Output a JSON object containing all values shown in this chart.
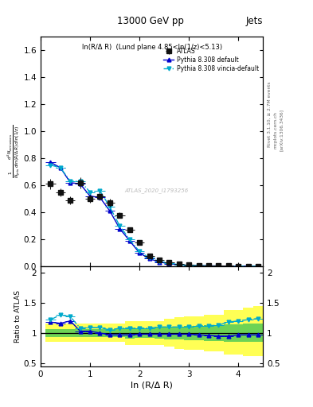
{
  "title_top": "13000 GeV pp",
  "title_right": "Jets",
  "panel_title": "ln(R/Δ R)  (Lund plane 4.85<ln(1/z)<5.13)",
  "ylabel_main": "$\\frac{1}{N_{jets}}\\frac{d^2 N_{emissions}}{d\\ln(R/\\Delta\\,R)\\,d\\ln(1/z)}$",
  "ylabel_ratio": "Ratio to ATLAS",
  "xlabel": "ln (R/Δ R)",
  "right_label_top": "Rivet 3.1.10, ≥ 2.7M events",
  "right_label_mid": "mcplots.cern.ch  [arXiv:1306.3436]",
  "watermark": "ATLAS_2020_I1793256",
  "xlim": [
    0,
    4.5
  ],
  "ylim_main": [
    0,
    1.7
  ],
  "ylim_ratio": [
    0.45,
    2.1
  ],
  "atlas_x": [
    0.2,
    0.4,
    0.6,
    0.8,
    1.0,
    1.2,
    1.4,
    1.6,
    1.8,
    2.0,
    2.2,
    2.4,
    2.6,
    2.8,
    3.0,
    3.2,
    3.4,
    3.6,
    3.8,
    4.0,
    4.2,
    4.4
  ],
  "atlas_y": [
    0.61,
    0.55,
    0.49,
    0.62,
    0.5,
    0.52,
    0.47,
    0.38,
    0.27,
    0.18,
    0.08,
    0.05,
    0.03,
    0.02,
    0.01,
    0.008,
    0.006,
    0.005,
    0.004,
    0.003,
    0.002,
    0.001
  ],
  "atlas_xerr": 0.1,
  "atlas_yerr": [
    0.04,
    0.03,
    0.03,
    0.04,
    0.03,
    0.03,
    0.03,
    0.02,
    0.015,
    0.01,
    0.006,
    0.004,
    0.003,
    0.002,
    0.001,
    0.001,
    0.001,
    0.001,
    0.001,
    0.001,
    0.001,
    0.001
  ],
  "p8def_x": [
    0.2,
    0.4,
    0.6,
    0.8,
    1.0,
    1.2,
    1.4,
    1.6,
    1.8,
    2.0,
    2.2,
    2.4,
    2.6,
    2.8,
    3.0,
    3.2,
    3.4,
    3.6,
    3.8,
    4.0,
    4.2,
    4.4
  ],
  "p8def_y": [
    0.77,
    0.73,
    0.62,
    0.61,
    0.52,
    0.51,
    0.41,
    0.28,
    0.19,
    0.1,
    0.057,
    0.033,
    0.02,
    0.012,
    0.007,
    0.005,
    0.004,
    0.003,
    0.002,
    0.002,
    0.0015,
    0.001
  ],
  "p8vincia_x": [
    0.2,
    0.4,
    0.6,
    0.8,
    1.0,
    1.2,
    1.4,
    1.6,
    1.8,
    2.0,
    2.2,
    2.4,
    2.6,
    2.8,
    3.0,
    3.2,
    3.4,
    3.6,
    3.8,
    4.0,
    4.2,
    4.4
  ],
  "p8vincia_y": [
    0.75,
    0.73,
    0.63,
    0.63,
    0.55,
    0.56,
    0.44,
    0.3,
    0.2,
    0.11,
    0.063,
    0.038,
    0.023,
    0.014,
    0.008,
    0.006,
    0.004,
    0.003,
    0.002,
    0.002,
    0.0018,
    0.0012
  ],
  "ratio_p8def_y": [
    1.18,
    1.16,
    1.2,
    1.03,
    1.03,
    1.0,
    0.97,
    0.97,
    0.97,
    0.98,
    0.98,
    0.98,
    0.98,
    0.98,
    0.98,
    0.97,
    0.96,
    0.95,
    0.95,
    0.97,
    0.97,
    0.97
  ],
  "ratio_p8vincia_y": [
    1.22,
    1.3,
    1.27,
    1.08,
    1.09,
    1.09,
    1.05,
    1.08,
    1.08,
    1.08,
    1.08,
    1.1,
    1.1,
    1.1,
    1.1,
    1.12,
    1.12,
    1.13,
    1.18,
    1.2,
    1.22,
    1.24
  ],
  "atlas_color": "#111111",
  "p8def_color": "#0000cc",
  "p8vincia_color": "#00aacc",
  "band_yellow_lo": [
    0.85,
    0.85,
    0.85,
    0.85,
    0.85,
    0.85,
    0.85,
    0.85,
    0.8,
    0.8,
    0.8,
    0.8,
    0.77,
    0.74,
    0.72,
    0.72,
    0.7,
    0.7,
    0.65,
    0.65,
    0.62,
    0.62
  ],
  "band_yellow_hi": [
    1.15,
    1.15,
    1.15,
    1.15,
    1.15,
    1.15,
    1.15,
    1.15,
    1.2,
    1.2,
    1.2,
    1.2,
    1.23,
    1.26,
    1.28,
    1.28,
    1.3,
    1.3,
    1.38,
    1.38,
    1.42,
    1.45
  ],
  "band_green_lo": [
    0.93,
    0.93,
    0.93,
    0.93,
    0.93,
    0.93,
    0.93,
    0.93,
    0.91,
    0.92,
    0.92,
    0.91,
    0.9,
    0.89,
    0.88,
    0.88,
    0.87,
    0.87,
    0.86,
    0.86,
    0.85,
    0.85
  ],
  "band_green_hi": [
    1.07,
    1.07,
    1.07,
    1.07,
    1.07,
    1.07,
    1.07,
    1.07,
    1.09,
    1.08,
    1.08,
    1.09,
    1.1,
    1.11,
    1.12,
    1.12,
    1.13,
    1.13,
    1.14,
    1.14,
    1.15,
    1.15
  ],
  "yticks_main": [
    0,
    0.2,
    0.4,
    0.6,
    0.8,
    1.0,
    1.2,
    1.4,
    1.6
  ],
  "yticks_ratio": [
    0.5,
    1.0,
    1.5,
    2.0
  ],
  "xticks": [
    0,
    1,
    2,
    3,
    4
  ]
}
